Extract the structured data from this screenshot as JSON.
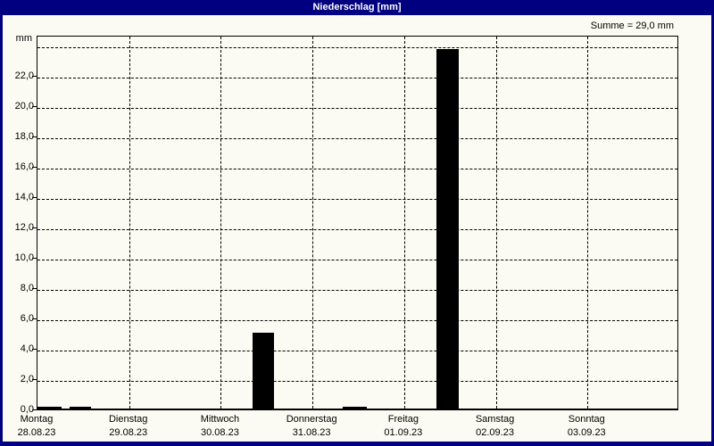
{
  "window": {
    "title": "Niederschlag [mm]",
    "colors": {
      "titlebar_bg": "#000080",
      "titlebar_text": "#ffffff",
      "window_border": "#000080",
      "background": "#fbfbf3",
      "bar_fill": "#000000",
      "grid": "#000000"
    }
  },
  "chart_data": {
    "type": "bar",
    "title": "Niederschlag [mm]",
    "sum_label": "Summe = 29,0 mm",
    "sum_value_mm": 29.0,
    "ylabel": "mm",
    "unit": "mm",
    "ylim": [
      0,
      24.7
    ],
    "ytick_step": 2,
    "ymax_grid": 24,
    "grid_style": "dashed",
    "legend": "none",
    "yticks": [
      "0,0",
      "2,0",
      "4,0",
      "6,0",
      "8,0",
      "10,0",
      "12,0",
      "14,0",
      "16,0",
      "18,0",
      "20,0",
      "22,0"
    ],
    "days": [
      {
        "name": "Montag",
        "date": "28.08.23",
        "total_mm": 0.2
      },
      {
        "name": "Dienstag",
        "date": "29.08.23",
        "total_mm": 0.0
      },
      {
        "name": "Mittwoch",
        "date": "30.08.23",
        "total_mm": 5.0
      },
      {
        "name": "Donnerstag",
        "date": "31.08.23",
        "total_mm": 0.1
      },
      {
        "name": "Freitag",
        "date": "01.09.23",
        "total_mm": 23.7
      },
      {
        "name": "Samstag",
        "date": "02.09.23",
        "total_mm": 0.0
      },
      {
        "name": "Sonntag",
        "date": "03.09.23",
        "total_mm": 0.0
      }
    ],
    "bars": [
      {
        "day": "Montag",
        "day_index": 0,
        "start_frac": 0.0,
        "width_frac": 0.26,
        "value_mm": 0.1
      },
      {
        "day": "Montag",
        "day_index": 0,
        "start_frac": 0.35,
        "width_frac": 0.23,
        "value_mm": 0.1
      },
      {
        "day": "Mittwoch",
        "day_index": 2,
        "start_frac": 0.35,
        "width_frac": 0.23,
        "value_mm": 5.0
      },
      {
        "day": "Donnerstag",
        "day_index": 3,
        "start_frac": 0.33,
        "width_frac": 0.26,
        "value_mm": 0.1
      },
      {
        "day": "Freitag",
        "day_index": 4,
        "start_frac": 0.35,
        "width_frac": 0.25,
        "value_mm": 23.7
      }
    ]
  }
}
